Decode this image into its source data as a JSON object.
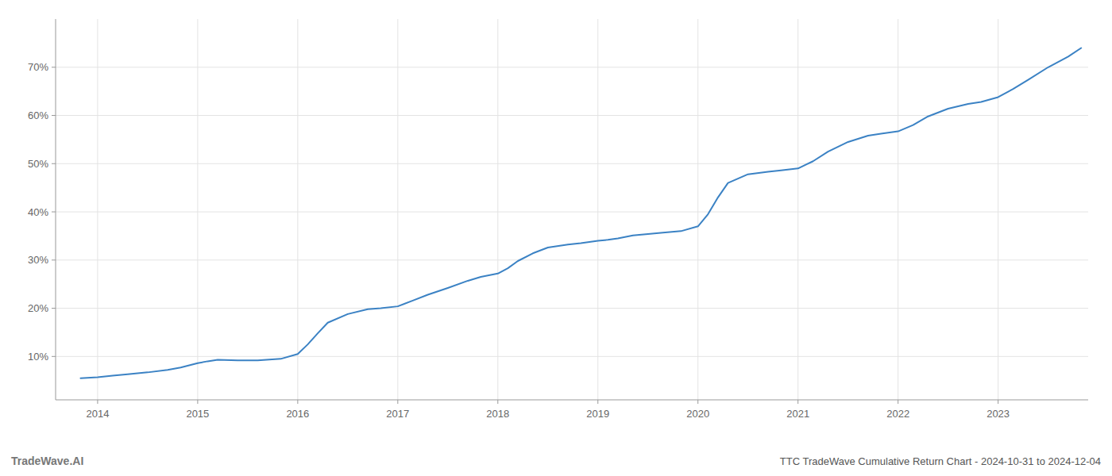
{
  "chart_data": {
    "type": "line",
    "title": "TTC TradeWave Cumulative Return Chart - 2024-10-31 to 2024-12-04",
    "annotations": [
      "TradeWave.AI"
    ],
    "color": "#3b82c4",
    "grid": true,
    "xlim": [
      2013.58,
      2023.9
    ],
    "xticks": [
      2014,
      2015,
      2016,
      2017,
      2018,
      2019,
      2020,
      2021,
      2022,
      2023
    ],
    "ylim": [
      0.01,
      0.8
    ],
    "yticks": [
      {
        "value": 0.1,
        "label": "10%"
      },
      {
        "value": 0.2,
        "label": "20%"
      },
      {
        "value": 0.3,
        "label": "30%"
      },
      {
        "value": 0.4,
        "label": "40%"
      },
      {
        "value": 0.5,
        "label": "50%"
      },
      {
        "value": 0.6,
        "label": "60%"
      },
      {
        "value": 0.7,
        "label": "70%"
      }
    ],
    "x": [
      2013.83,
      2014.0,
      2014.15,
      2014.3,
      2014.5,
      2014.7,
      2014.83,
      2015.0,
      2015.1,
      2015.2,
      2015.4,
      2015.6,
      2015.83,
      2016.0,
      2016.1,
      2016.2,
      2016.3,
      2016.5,
      2016.7,
      2016.83,
      2017.0,
      2017.15,
      2017.3,
      2017.5,
      2017.7,
      2017.83,
      2018.0,
      2018.1,
      2018.2,
      2018.35,
      2018.5,
      2018.7,
      2018.83,
      2019.0,
      2019.1,
      2019.2,
      2019.35,
      2019.5,
      2019.65,
      2019.83,
      2020.0,
      2020.1,
      2020.2,
      2020.3,
      2020.5,
      2020.7,
      2020.83,
      2021.0,
      2021.15,
      2021.3,
      2021.5,
      2021.7,
      2021.83,
      2022.0,
      2022.15,
      2022.3,
      2022.5,
      2022.7,
      2022.83,
      2023.0,
      2023.15,
      2023.3,
      2023.5,
      2023.7,
      2023.83
    ],
    "values": [
      0.055,
      0.057,
      0.06,
      0.063,
      0.067,
      0.072,
      0.077,
      0.086,
      0.09,
      0.093,
      0.092,
      0.092,
      0.095,
      0.105,
      0.125,
      0.148,
      0.17,
      0.188,
      0.198,
      0.2,
      0.204,
      0.216,
      0.228,
      0.242,
      0.257,
      0.265,
      0.272,
      0.283,
      0.298,
      0.314,
      0.326,
      0.332,
      0.335,
      0.34,
      0.342,
      0.345,
      0.351,
      0.354,
      0.357,
      0.36,
      0.37,
      0.395,
      0.43,
      0.46,
      0.478,
      0.483,
      0.486,
      0.49,
      0.505,
      0.525,
      0.545,
      0.558,
      0.562,
      0.567,
      0.58,
      0.598,
      0.614,
      0.624,
      0.628,
      0.638,
      0.655,
      0.674,
      0.7,
      0.722,
      0.74
    ]
  }
}
